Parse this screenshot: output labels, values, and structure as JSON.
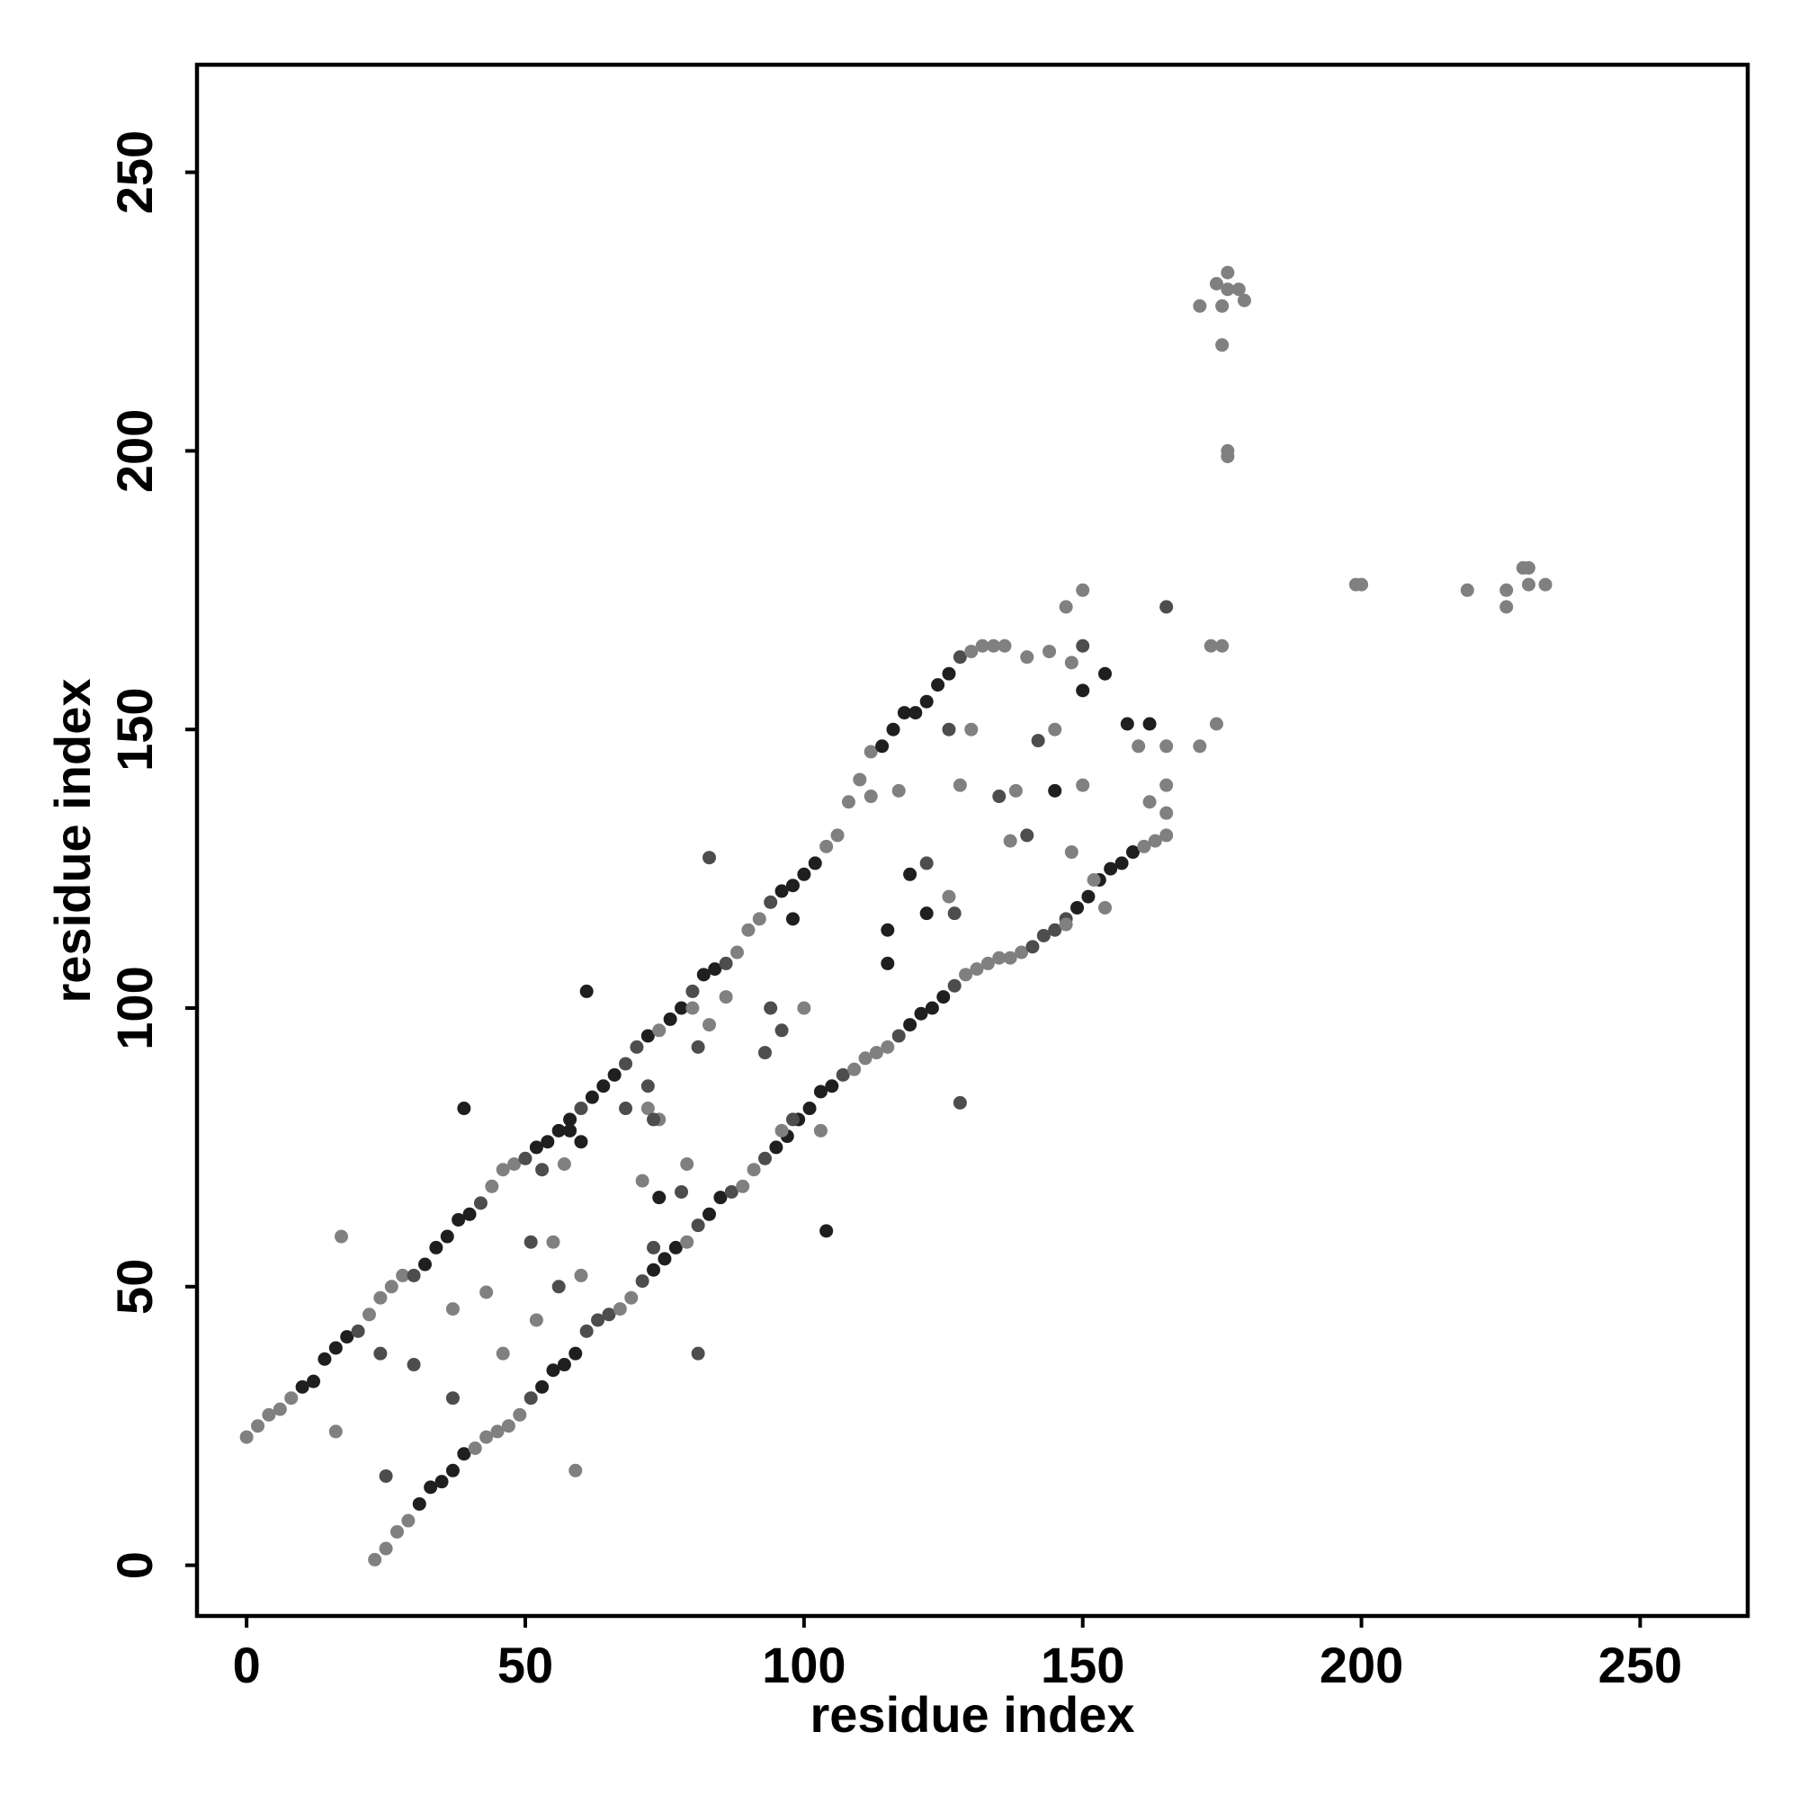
{
  "chart_data": {
    "type": "scatter",
    "x_label": "residue index",
    "y_label": "residue index",
    "xlim": [
      -8.9,
      269.3
    ],
    "ylim": [
      -9.1,
      269.3
    ],
    "xticks": [
      0,
      50,
      100,
      150,
      200,
      250
    ],
    "yticks": [
      0,
      50,
      100,
      150,
      200,
      250
    ],
    "grid": false,
    "x": [
      0,
      2,
      4,
      6,
      8,
      10,
      12,
      14,
      16,
      18,
      20,
      22,
      24,
      26,
      28,
      30,
      32,
      34,
      36,
      38,
      40,
      42,
      44,
      46,
      48,
      50,
      52,
      54,
      56,
      58,
      60,
      62,
      64,
      66,
      68,
      70,
      72,
      74,
      76,
      78,
      80,
      82,
      84,
      86,
      88,
      90,
      92,
      94,
      96,
      98,
      100,
      102,
      104,
      106,
      108,
      110,
      112,
      114,
      116,
      118,
      120,
      122,
      124,
      126,
      128,
      130,
      132,
      134,
      23,
      25,
      27,
      29,
      31,
      33,
      35,
      37,
      39,
      41,
      43,
      45,
      47,
      49,
      51,
      53,
      55,
      57,
      59,
      61,
      63,
      65,
      67,
      69,
      71,
      73,
      75,
      77,
      79,
      81,
      83,
      85,
      87,
      89,
      91,
      93,
      95,
      97,
      99,
      101,
      103,
      105,
      107,
      109,
      111,
      113,
      115,
      117,
      119,
      121,
      123,
      125,
      127,
      129,
      131,
      133,
      135,
      137,
      139,
      141,
      143,
      145,
      147,
      149,
      151,
      153,
      155,
      157,
      159,
      161,
      163,
      165,
      136,
      140,
      144,
      148,
      150,
      154,
      150,
      158,
      162,
      165,
      165,
      165,
      162,
      160,
      165,
      173,
      175,
      150,
      147,
      145,
      142,
      138,
      135,
      137,
      140,
      145,
      150,
      148,
      152,
      154,
      147,
      126,
      130,
      128,
      119,
      122,
      122,
      127,
      126,
      83,
      115,
      98,
      80,
      83,
      81,
      93,
      96,
      94,
      86,
      100,
      104,
      128,
      98,
      96,
      103,
      72,
      68,
      72,
      74,
      61,
      58,
      53,
      57,
      60,
      39,
      30,
      24,
      17,
      16,
      25,
      37,
      37,
      43,
      46,
      52,
      56,
      60,
      51,
      55,
      81,
      59,
      73,
      73,
      74,
      79,
      78,
      71,
      115,
      112,
      117,
      176,
      174,
      178,
      176,
      171,
      175,
      179,
      175,
      176,
      176,
      199,
      200,
      219,
      226,
      226,
      229,
      230,
      230,
      233,
      174,
      171
    ],
    "values": [
      23,
      25,
      27,
      28,
      30,
      32,
      33,
      37,
      39,
      41,
      42,
      45,
      48,
      50,
      52,
      52,
      54,
      57,
      59,
      62,
      63,
      65,
      68,
      71,
      72,
      73,
      75,
      76,
      78,
      80,
      82,
      84,
      86,
      88,
      90,
      93,
      95,
      96,
      98,
      100,
      103,
      106,
      107,
      108,
      110,
      114,
      116,
      119,
      121,
      122,
      124,
      126,
      129,
      131,
      137,
      141,
      146,
      147,
      150,
      153,
      153,
      155,
      158,
      160,
      163,
      164,
      165,
      165,
      1,
      3,
      6,
      8,
      11,
      14,
      15,
      17,
      20,
      21,
      23,
      24,
      25,
      27,
      30,
      32,
      35,
      36,
      38,
      42,
      44,
      45,
      46,
      48,
      51,
      53,
      55,
      57,
      58,
      61,
      63,
      66,
      67,
      68,
      71,
      73,
      75,
      77,
      80,
      82,
      85,
      86,
      88,
      89,
      91,
      92,
      93,
      95,
      97,
      99,
      100,
      102,
      104,
      106,
      107,
      108,
      109,
      109,
      110,
      111,
      113,
      114,
      116,
      118,
      120,
      123,
      125,
      126,
      128,
      129,
      130,
      131,
      165,
      163,
      164,
      162,
      165,
      160,
      157,
      151,
      151,
      147,
      140,
      135,
      137,
      147,
      172,
      165,
      165,
      175,
      172,
      150,
      148,
      139,
      138,
      130,
      131,
      139,
      140,
      128,
      123,
      118,
      115,
      150,
      150,
      140,
      124,
      126,
      117,
      117,
      120,
      127,
      114,
      116,
      100,
      97,
      93,
      92,
      96,
      100,
      102,
      100,
      60,
      83,
      80,
      78,
      78,
      86,
      82,
      82,
      80,
      103,
      78,
      71,
      72,
      76,
      82,
      36,
      38,
      59,
      24,
      16,
      30,
      46,
      49,
      38,
      44,
      50,
      52,
      58,
      58,
      38,
      17,
      57,
      80,
      66,
      72,
      67,
      69,
      108,
      138,
      139,
      232,
      230,
      229,
      229,
      226,
      226,
      227,
      219,
      199,
      200,
      176,
      176,
      175,
      175,
      172,
      179,
      179,
      176,
      176,
      151,
      147
    ],
    "colors": [
      "#808080",
      "#808080",
      "#808080",
      "#808080",
      "#808080",
      "#1f1f1f",
      "#1f1f1f",
      "#1f1f1f",
      "#1f1f1f",
      "#1f1f1f",
      "#4d4d4d",
      "#808080",
      "#808080",
      "#808080",
      "#808080",
      "#4d4d4d",
      "#1f1f1f",
      "#1f1f1f",
      "#1f1f1f",
      "#1f1f1f",
      "#1f1f1f",
      "#4d4d4d",
      "#808080",
      "#808080",
      "#808080",
      "#4d4d4d",
      "#1f1f1f",
      "#1f1f1f",
      "#1f1f1f",
      "#1f1f1f",
      "#4d4d4d",
      "#1f1f1f",
      "#1f1f1f",
      "#1f1f1f",
      "#4d4d4d",
      "#4d4d4d",
      "#1f1f1f",
      "#808080",
      "#1f1f1f",
      "#1f1f1f",
      "#4d4d4d",
      "#1f1f1f",
      "#1f1f1f",
      "#4d4d4d",
      "#808080",
      "#808080",
      "#808080",
      "#4d4d4d",
      "#1f1f1f",
      "#1f1f1f",
      "#1f1f1f",
      "#1f1f1f",
      "#808080",
      "#808080",
      "#808080",
      "#808080",
      "#808080",
      "#1f1f1f",
      "#1f1f1f",
      "#1f1f1f",
      "#1f1f1f",
      "#1f1f1f",
      "#1f1f1f",
      "#1f1f1f",
      "#4d4d4d",
      "#808080",
      "#808080",
      "#808080",
      "#808080",
      "#808080",
      "#808080",
      "#808080",
      "#1f1f1f",
      "#1f1f1f",
      "#1f1f1f",
      "#1f1f1f",
      "#1f1f1f",
      "#808080",
      "#808080",
      "#808080",
      "#808080",
      "#808080",
      "#4d4d4d",
      "#1f1f1f",
      "#1f1f1f",
      "#1f1f1f",
      "#1f1f1f",
      "#4d4d4d",
      "#4d4d4d",
      "#4d4d4d",
      "#808080",
      "#808080",
      "#4d4d4d",
      "#1f1f1f",
      "#1f1f1f",
      "#1f1f1f",
      "#808080",
      "#4d4d4d",
      "#1f1f1f",
      "#1f1f1f",
      "#4d4d4d",
      "#808080",
      "#808080",
      "#4d4d4d",
      "#1f1f1f",
      "#1f1f1f",
      "#1f1f1f",
      "#1f1f1f",
      "#1f1f1f",
      "#1f1f1f",
      "#4d4d4d",
      "#808080",
      "#808080",
      "#808080",
      "#808080",
      "#4d4d4d",
      "#1f1f1f",
      "#1f1f1f",
      "#1f1f1f",
      "#1f1f1f",
      "#4d4d4d",
      "#808080",
      "#808080",
      "#808080",
      "#808080",
      "#808080",
      "#808080",
      "#4d4d4d",
      "#4d4d4d",
      "#4d4d4d",
      "#4d4d4d",
      "#1f1f1f",
      "#1f1f1f",
      "#1f1f1f",
      "#1f1f1f",
      "#1f1f1f",
      "#1f1f1f",
      "#808080",
      "#808080",
      "#808080",
      "#808080",
      "#808080",
      "#808080",
      "#808080",
      "#4d4d4d",
      "#1f1f1f",
      "#1f1f1f",
      "#1f1f1f",
      "#1f1f1f",
      "#808080",
      "#808080",
      "#808080",
      "#808080",
      "#808080",
      "#4d4d4d",
      "#808080",
      "#808080",
      "#808080",
      "#808080",
      "#808080",
      "#4d4d4d",
      "#808080",
      "#4d4d4d",
      "#808080",
      "#4d4d4d",
      "#1f1f1f",
      "#808080",
      "#808080",
      "#808080",
      "#808080",
      "#808080",
      "#4d4d4d",
      "#808080",
      "#808080",
      "#1f1f1f",
      "#4d4d4d",
      "#1f1f1f",
      "#4d4d4d",
      "#808080",
      "#4d4d4d",
      "#1f1f1f",
      "#1f1f1f",
      "#808080",
      "#808080",
      "#4d4d4d",
      "#4d4d4d",
      "#4d4d4d",
      "#4d4d4d",
      "#808080",
      "#808080",
      "#1f1f1f",
      "#4d4d4d",
      "#4d4d4d",
      "#808080",
      "#808080",
      "#4d4d4d",
      "#4d4d4d",
      "#808080",
      "#808080",
      "#1f1f1f",
      "#1f1f1f",
      "#4d4d4d",
      "#808080",
      "#1f1f1f",
      "#1f1f1f",
      "#4d4d4d",
      "#4d4d4d",
      "#808080",
      "#808080",
      "#4d4d4d",
      "#4d4d4d",
      "#808080",
      "#808080",
      "#808080",
      "#808080",
      "#4d4d4d",
      "#808080",
      "#4d4d4d",
      "#808080",
      "#4d4d4d",
      "#808080",
      "#4d4d4d",
      "#4d4d4d",
      "#1f1f1f",
      "#808080",
      "#4d4d4d",
      "#808080",
      "#1f1f1f",
      "#808080",
      "#808080",
      "#808080",
      "#808080",
      "#808080",
      "#808080",
      "#808080",
      "#808080",
      "#808080",
      "#808080",
      "#808080",
      "#808080",
      "#808080",
      "#808080",
      "#808080",
      "#808080",
      "#808080",
      "#808080",
      "#808080",
      "#808080",
      "#808080",
      "#808080",
      "#808080"
    ]
  }
}
